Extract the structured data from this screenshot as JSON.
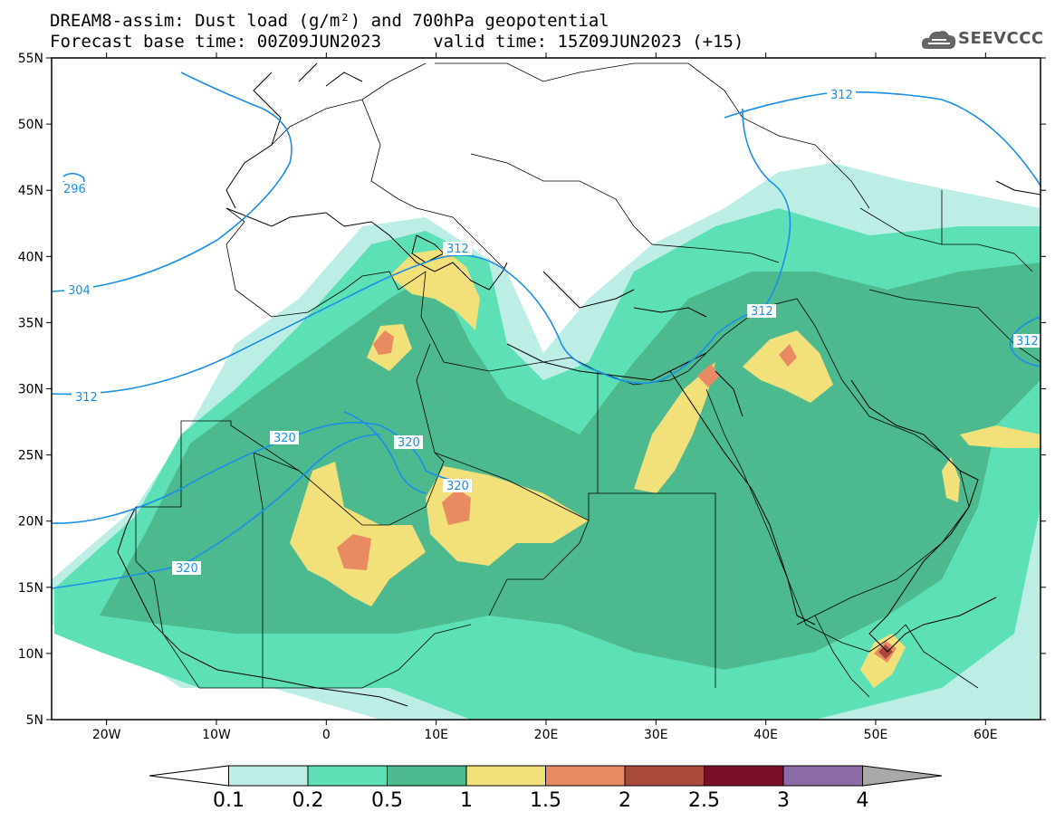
{
  "title_line1": "DREAM8-assim: Dust load (g/m²) and 700hPa geopotential",
  "title_line2": "Forecast base time: 00Z09JUN2023     valid time: 15Z09JUN2023 (+15)",
  "logo_text": "SEEVCCC",
  "map": {
    "lon_range": [
      -25,
      65
    ],
    "lat_range": [
      5,
      55
    ],
    "lat_ticks": [
      {
        "value": 55,
        "label": "55N"
      },
      {
        "value": 50,
        "label": "50N"
      },
      {
        "value": 45,
        "label": "45N"
      },
      {
        "value": 40,
        "label": "40N"
      },
      {
        "value": 35,
        "label": "35N"
      },
      {
        "value": 30,
        "label": "30N"
      },
      {
        "value": 25,
        "label": "25N"
      },
      {
        "value": 20,
        "label": "20N"
      },
      {
        "value": 15,
        "label": "15N"
      },
      {
        "value": 10,
        "label": "10N"
      },
      {
        "value": 5,
        "label": "5N"
      }
    ],
    "lon_ticks": [
      {
        "value": -20,
        "label": "20W"
      },
      {
        "value": -10,
        "label": "10W"
      },
      {
        "value": 0,
        "label": "0"
      },
      {
        "value": 10,
        "label": "10E"
      },
      {
        "value": 20,
        "label": "20E"
      },
      {
        "value": 30,
        "label": "30E"
      },
      {
        "value": 40,
        "label": "40E"
      },
      {
        "value": 50,
        "label": "50E"
      },
      {
        "value": 60,
        "label": "60E"
      }
    ],
    "contour_labels": [
      "296",
      "304",
      "312",
      "312",
      "312",
      "312",
      "312",
      "320",
      "320",
      "320",
      "320"
    ],
    "contour_color": "#1a8fe8"
  },
  "colorbar": {
    "levels": [
      "0.1",
      "0.2",
      "0.5",
      "1",
      "1.5",
      "2",
      "2.5",
      "3",
      "4"
    ],
    "colors": [
      "#ffffff",
      "#bdeee6",
      "#5ee0b6",
      "#4db98e",
      "#f2e07a",
      "#e88b62",
      "#a8493b",
      "#7a0f2a",
      "#8b6aa5",
      "#a9a9a9"
    ]
  }
}
